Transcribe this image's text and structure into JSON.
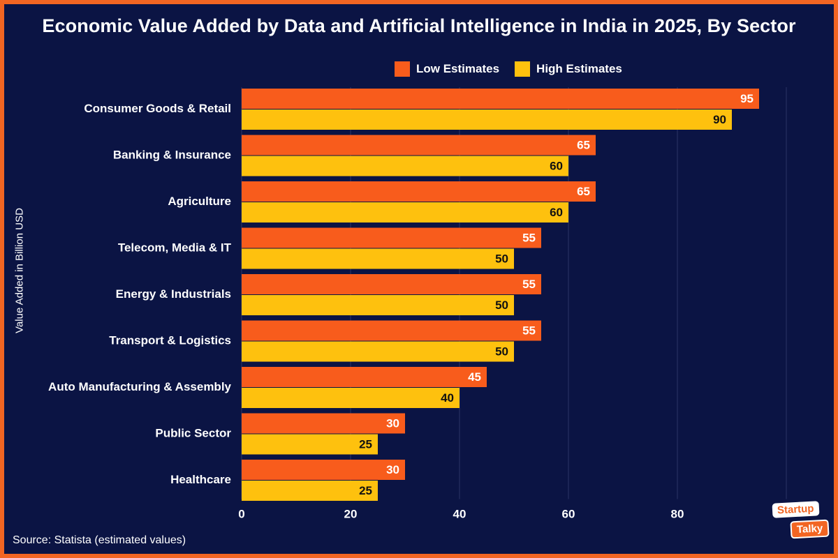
{
  "colors": {
    "background": "#0b1444",
    "border": "#f26522",
    "low": "#f85c1c",
    "high": "#fec10e",
    "grid": "#2b3566",
    "text": "#ffffff",
    "label_on_high": "#111111"
  },
  "chart_data": {
    "type": "bar",
    "orientation": "horizontal",
    "title": "Economic Value Added by Data and Artificial Intelligence in India in 2025, By Sector",
    "xlabel": "",
    "ylabel": "Value Added in Billion USD",
    "xlim": [
      0,
      100
    ],
    "xticks": [
      0,
      20,
      40,
      60,
      80
    ],
    "grid": true,
    "legend_position": "top-center",
    "categories": [
      "Consumer Goods & Retail",
      "Banking & Insurance",
      "Agriculture",
      "Telecom, Media & IT",
      "Energy & Industrials",
      "Transport & Logistics",
      "Auto Manufacturing & Assembly",
      "Public Sector",
      "Healthcare"
    ],
    "series": [
      {
        "name": "Low Estimates",
        "values": [
          95,
          65,
          65,
          55,
          55,
          55,
          45,
          30,
          30
        ]
      },
      {
        "name": "High Estimates",
        "values": [
          90,
          60,
          60,
          50,
          50,
          50,
          40,
          25,
          25
        ]
      }
    ]
  },
  "source": "Source: Statista (estimated values)",
  "logo": {
    "line1": "Startup",
    "line2": "Talky"
  }
}
